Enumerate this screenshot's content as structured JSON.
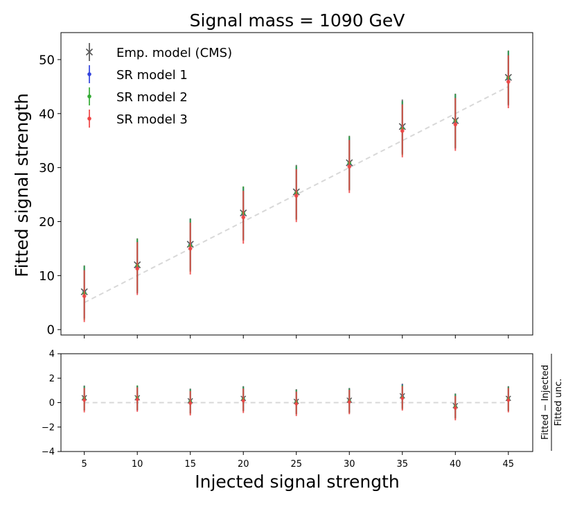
{
  "chart_data": {
    "type": "scatter",
    "title": "Signal mass = 1090 GeV",
    "xlabel": "Injected signal strength",
    "x_ticks": [
      5,
      10,
      15,
      20,
      25,
      30,
      35,
      40,
      45
    ],
    "main_panel": {
      "ylabel": "Fitted signal strength",
      "ylim": [
        -1,
        55
      ],
      "yticks": [
        0,
        10,
        20,
        30,
        40,
        50
      ],
      "reference_line": {
        "x": [
          5,
          45
        ],
        "y": [
          5,
          45
        ],
        "style": "dashed",
        "color": "#d8d8d8"
      },
      "legend_position": "top-left",
      "series": [
        {
          "name": "Emp. model (CMS)",
          "marker": "x",
          "color": "#555555",
          "x": [
            5,
            10,
            15,
            20,
            25,
            30,
            35,
            40,
            45
          ],
          "y": [
            7.0,
            12.0,
            15.8,
            21.6,
            25.5,
            30.9,
            37.6,
            38.7,
            46.7
          ],
          "err": [
            4.9,
            4.9,
            4.8,
            4.9,
            5.0,
            5.0,
            5.0,
            5.0,
            5.0
          ]
        },
        {
          "name": "SR model 1",
          "marker": "o",
          "color": "#3344dd",
          "x": [
            5,
            10,
            15,
            20,
            25,
            30,
            35,
            40,
            45
          ],
          "y": [
            6.9,
            11.6,
            15.7,
            21.4,
            25.3,
            30.7,
            37.4,
            38.5,
            46.5
          ],
          "err": [
            4.8,
            4.9,
            4.8,
            4.9,
            4.9,
            4.9,
            4.9,
            5.0,
            5.0
          ]
        },
        {
          "name": "SR model 2",
          "marker": "o",
          "color": "#33aa33",
          "x": [
            5,
            10,
            15,
            20,
            25,
            30,
            35,
            40,
            45
          ],
          "y": [
            6.8,
            11.8,
            15.6,
            21.5,
            25.3,
            30.8,
            37.3,
            38.6,
            46.6
          ],
          "err": [
            5.0,
            5.0,
            4.9,
            5.0,
            5.0,
            5.0,
            5.0,
            5.0,
            5.0
          ]
        },
        {
          "name": "SR model 3",
          "marker": "o",
          "color": "#ee4444",
          "x": [
            5,
            10,
            15,
            20,
            25,
            30,
            35,
            40,
            45
          ],
          "y": [
            6.2,
            11.3,
            15.0,
            20.8,
            24.8,
            30.2,
            36.8,
            38.0,
            45.9
          ],
          "err": [
            4.8,
            4.9,
            4.8,
            4.9,
            4.9,
            4.9,
            4.9,
            4.9,
            4.9
          ]
        }
      ]
    },
    "ratio_panel": {
      "ylabel_numerator": "Fitted − Injected",
      "ylabel_denominator": "Fitted unc.",
      "ylim": [
        -4,
        4
      ],
      "yticks": [
        -4,
        -2,
        0,
        2,
        4
      ],
      "reference_line": {
        "y": 0,
        "style": "dashed",
        "color": "#d8d8d8"
      },
      "series": [
        {
          "name": "Emp. model (CMS)",
          "color": "#555555",
          "y": [
            0.4,
            0.4,
            0.15,
            0.35,
            0.1,
            0.2,
            0.55,
            -0.25,
            0.35
          ],
          "err": [
            1.0,
            1.0,
            1.0,
            1.0,
            1.0,
            1.0,
            1.0,
            1.0,
            1.0
          ]
        },
        {
          "name": "SR model 1",
          "color": "#3344dd",
          "y": [
            0.35,
            0.35,
            0.1,
            0.3,
            0.05,
            0.15,
            0.5,
            -0.3,
            0.3
          ],
          "err": [
            1.0,
            1.0,
            1.0,
            1.0,
            1.0,
            1.0,
            1.0,
            1.0,
            1.0
          ]
        },
        {
          "name": "SR model 2",
          "color": "#33aa33",
          "y": [
            0.35,
            0.4,
            0.1,
            0.3,
            0.05,
            0.15,
            0.45,
            -0.3,
            0.3
          ],
          "err": [
            1.0,
            1.0,
            1.0,
            1.0,
            1.0,
            1.0,
            1.0,
            1.0,
            1.0
          ]
        },
        {
          "name": "SR model 3",
          "color": "#ee4444",
          "y": [
            0.2,
            0.25,
            -0.05,
            0.15,
            -0.1,
            0.05,
            0.35,
            -0.45,
            0.2
          ],
          "err": [
            1.0,
            1.0,
            1.0,
            1.0,
            1.0,
            1.0,
            1.0,
            1.0,
            1.0
          ]
        }
      ]
    }
  }
}
